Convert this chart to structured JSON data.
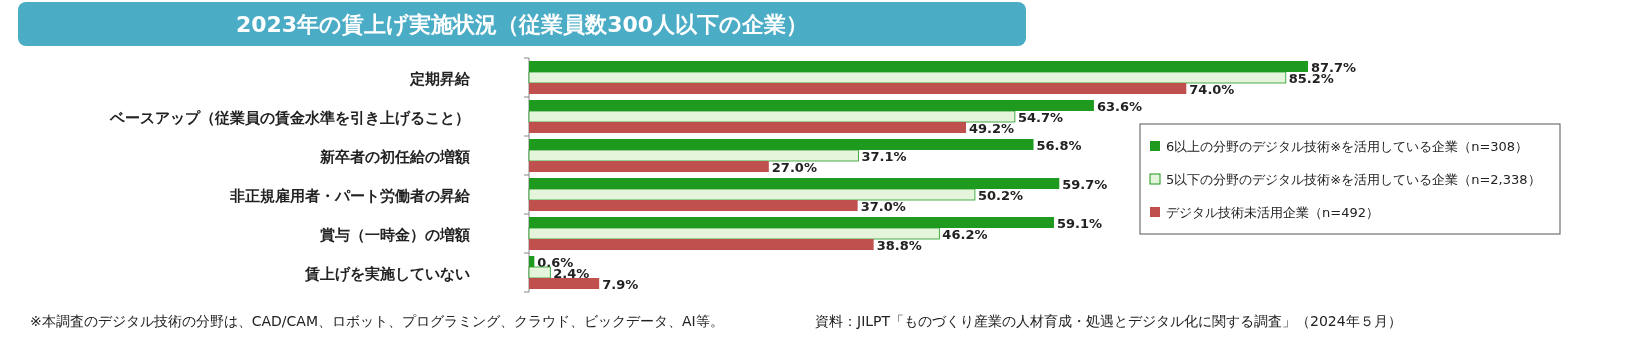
{
  "chart_data": {
    "type": "bar",
    "orientation": "horizontal",
    "title": "2023年の賃上げ実施状況（従業員数300人以下の企業）",
    "categories": [
      "定期昇給",
      "ベースアップ（従業員の賃金水準を引き上げること）",
      "新卒者の初任給の増額",
      "非正規雇用者・パート労働者の昇給",
      "賞与（一時金）の増額",
      "賃上げを実施していない"
    ],
    "series": [
      {
        "name": "6以上の分野のデジタル技術※を活用している企業（n=308）",
        "color": "#1e9a1e",
        "values": [
          87.7,
          63.6,
          56.8,
          59.7,
          59.1,
          0.6
        ],
        "value_labels": [
          "87.7%",
          "63.6%",
          "56.8%",
          "59.7%",
          "59.1%",
          "0.6%"
        ]
      },
      {
        "name": "5以下の分野のデジタル技術※を活用している企業（n=2,338）",
        "color": "#e4f5dc",
        "values": [
          85.2,
          54.7,
          37.1,
          50.2,
          46.2,
          2.4
        ],
        "value_labels": [
          "85.2%",
          "54.7%",
          "37.1%",
          "50.2%",
          "46.2%",
          "2.4%"
        ]
      },
      {
        "name": "デジタル技術未活用企業（n=492）",
        "color": "#c0504d",
        "values": [
          74.0,
          49.2,
          27.0,
          37.0,
          38.8,
          7.9
        ],
        "value_labels": [
          "74.0%",
          "49.2%",
          "27.0%",
          "37.0%",
          "38.8%",
          "7.9%"
        ]
      }
    ],
    "legend": "right",
    "tick_labels": "y",
    "annotations": [
      "※本調査のデジタル技術の分野は、CAD/CAM、ロボット、プログラミング、クラウド、ビックデータ、AI等。",
      "資料：JILPT「ものづくり産業の人材育成・処遇とデジタル化に関する調査」（2024年５月）"
    ]
  }
}
